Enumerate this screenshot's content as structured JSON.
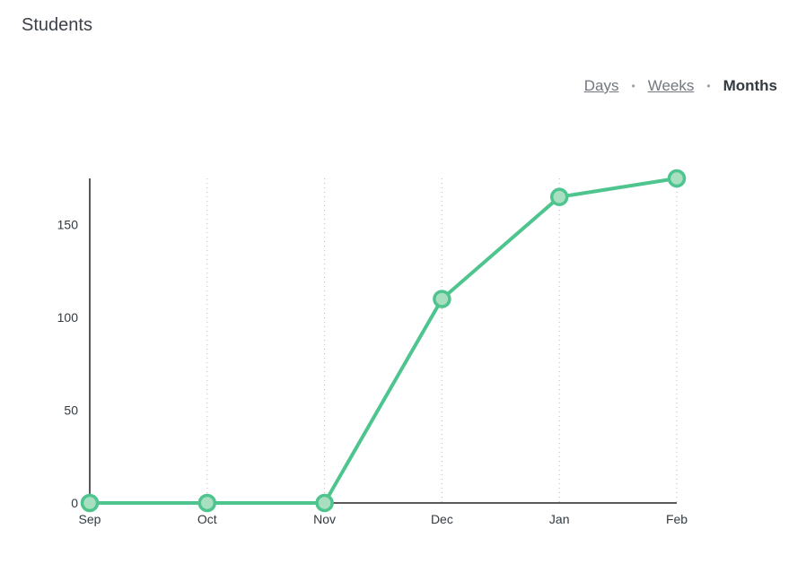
{
  "page": {
    "title": "Students"
  },
  "range": {
    "days": "Days",
    "weeks": "Weeks",
    "months": "Months",
    "active": "Months",
    "separator": "•"
  },
  "colors": {
    "line": "#4ec48f",
    "marker_fill": "#a8dfc0",
    "marker_stroke": "#4ec48f",
    "axis": "#222222",
    "grid": "#bbbbbb"
  },
  "chart_data": {
    "type": "line",
    "title": "",
    "xlabel": "",
    "ylabel": "",
    "categories": [
      "Sep",
      "Oct",
      "Nov",
      "Dec",
      "Jan",
      "Feb"
    ],
    "series": [
      {
        "values": [
          0,
          0,
          0,
          110,
          165,
          175
        ]
      }
    ],
    "ylim": [
      0,
      175
    ],
    "yticks": [
      0,
      50,
      100,
      150
    ],
    "grid": "vertical dotted",
    "legend": "none"
  }
}
